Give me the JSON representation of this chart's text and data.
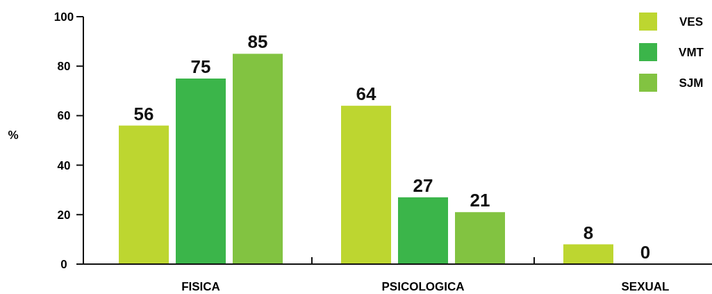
{
  "chart_data": {
    "type": "bar",
    "ylabel": "%",
    "categories": [
      "FISICA",
      "PSICOLOGICA",
      "SEXUAL"
    ],
    "series": [
      {
        "name": "VES",
        "color": "#bdd630",
        "values": [
          56,
          64,
          8
        ]
      },
      {
        "name": "VMT",
        "color": "#3bb54a",
        "values": [
          75,
          27,
          0
        ]
      },
      {
        "name": "SJM",
        "color": "#82c341",
        "values": [
          85,
          21,
          null
        ]
      }
    ],
    "ylim": [
      0,
      100
    ],
    "yticks": [
      0,
      20,
      40,
      60,
      80,
      100
    ],
    "data_labels": true,
    "legend": "top right",
    "grid": false
  }
}
